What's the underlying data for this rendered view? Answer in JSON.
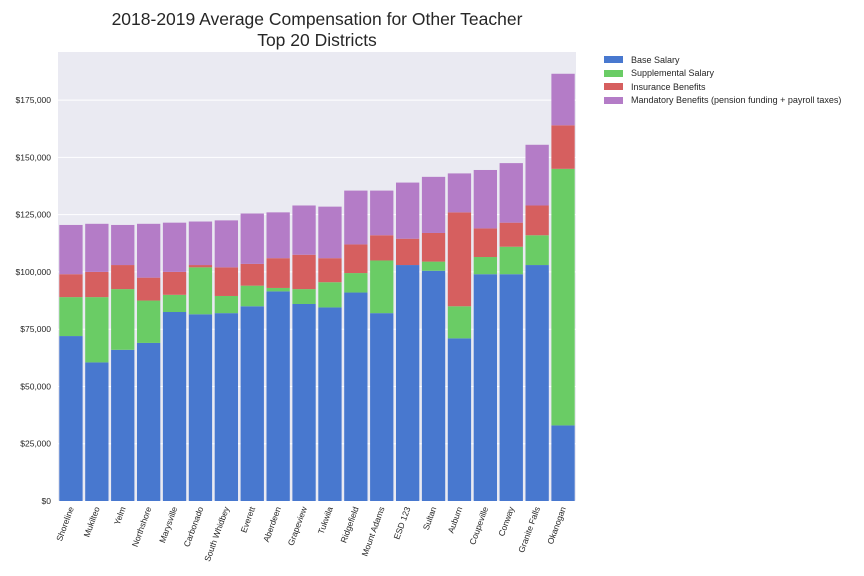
{
  "title_line1": "2018-2019 Average Compensation for Other Teacher",
  "title_line2": "Top 20 Districts",
  "colors": {
    "base": "#4878CF",
    "supplemental": "#6ACC65",
    "insurance": "#D65F5F",
    "mandatory": "#B47CC7",
    "plot_bg": "#EAEAF2",
    "grid": "#FFFFFF"
  },
  "chart_data": {
    "type": "bar",
    "stacked": true,
    "title": "2018-2019 Average Compensation for Other Teacher\nTop 20 Districts",
    "xlabel": "",
    "ylabel": "",
    "ylim": [
      0,
      196000
    ],
    "yticks": [
      0,
      25000,
      50000,
      75000,
      100000,
      125000,
      150000,
      175000
    ],
    "ytick_labels": [
      "$0",
      "$25,000",
      "$50,000",
      "$75,000",
      "$100,000",
      "$125,000",
      "$150,000",
      "$175,000"
    ],
    "grid": true,
    "legend_position": "outside-top-right",
    "categories": [
      "Shoreline",
      "Mukilteo",
      "Yelm",
      "Northshore",
      "Marysville",
      "Carbonado",
      "South Whidbey",
      "Everett",
      "Aberdeen",
      "Grapeview",
      "Tukwila",
      "Ridgefield",
      "Mount Adams",
      "ESD 123",
      "Sultan",
      "Auburn",
      "Coupeville",
      "Conway",
      "Granite Falls",
      "Okanogan"
    ],
    "series": [
      {
        "name": "Base Salary",
        "color_key": "base",
        "values": [
          72000,
          60500,
          66000,
          69000,
          82500,
          81500,
          82000,
          85000,
          91500,
          86000,
          84500,
          91000,
          82000,
          103000,
          100500,
          71000,
          99000,
          99000,
          103000,
          33000
        ]
      },
      {
        "name": "Supplemental Salary",
        "color_key": "supplemental",
        "values": [
          17000,
          28500,
          26500,
          18500,
          7500,
          20500,
          7500,
          9000,
          1500,
          6500,
          11000,
          8500,
          23000,
          0,
          4000,
          14000,
          7500,
          12000,
          13000,
          112000
        ]
      },
      {
        "name": "Insurance Benefits",
        "color_key": "insurance",
        "values": [
          10000,
          11000,
          10500,
          10000,
          10000,
          1000,
          12500,
          9500,
          13000,
          15000,
          10500,
          12500,
          11000,
          11500,
          12500,
          41000,
          12500,
          10500,
          13000,
          19000
        ]
      },
      {
        "name": "Mandatory Benefits (pension funding + payroll taxes)",
        "color_key": "mandatory",
        "values": [
          21500,
          21000,
          17500,
          23500,
          21500,
          19000,
          20500,
          22000,
          20000,
          21500,
          22500,
          23500,
          19500,
          24500,
          24500,
          17000,
          25500,
          26000,
          26500,
          22500
        ]
      }
    ]
  }
}
